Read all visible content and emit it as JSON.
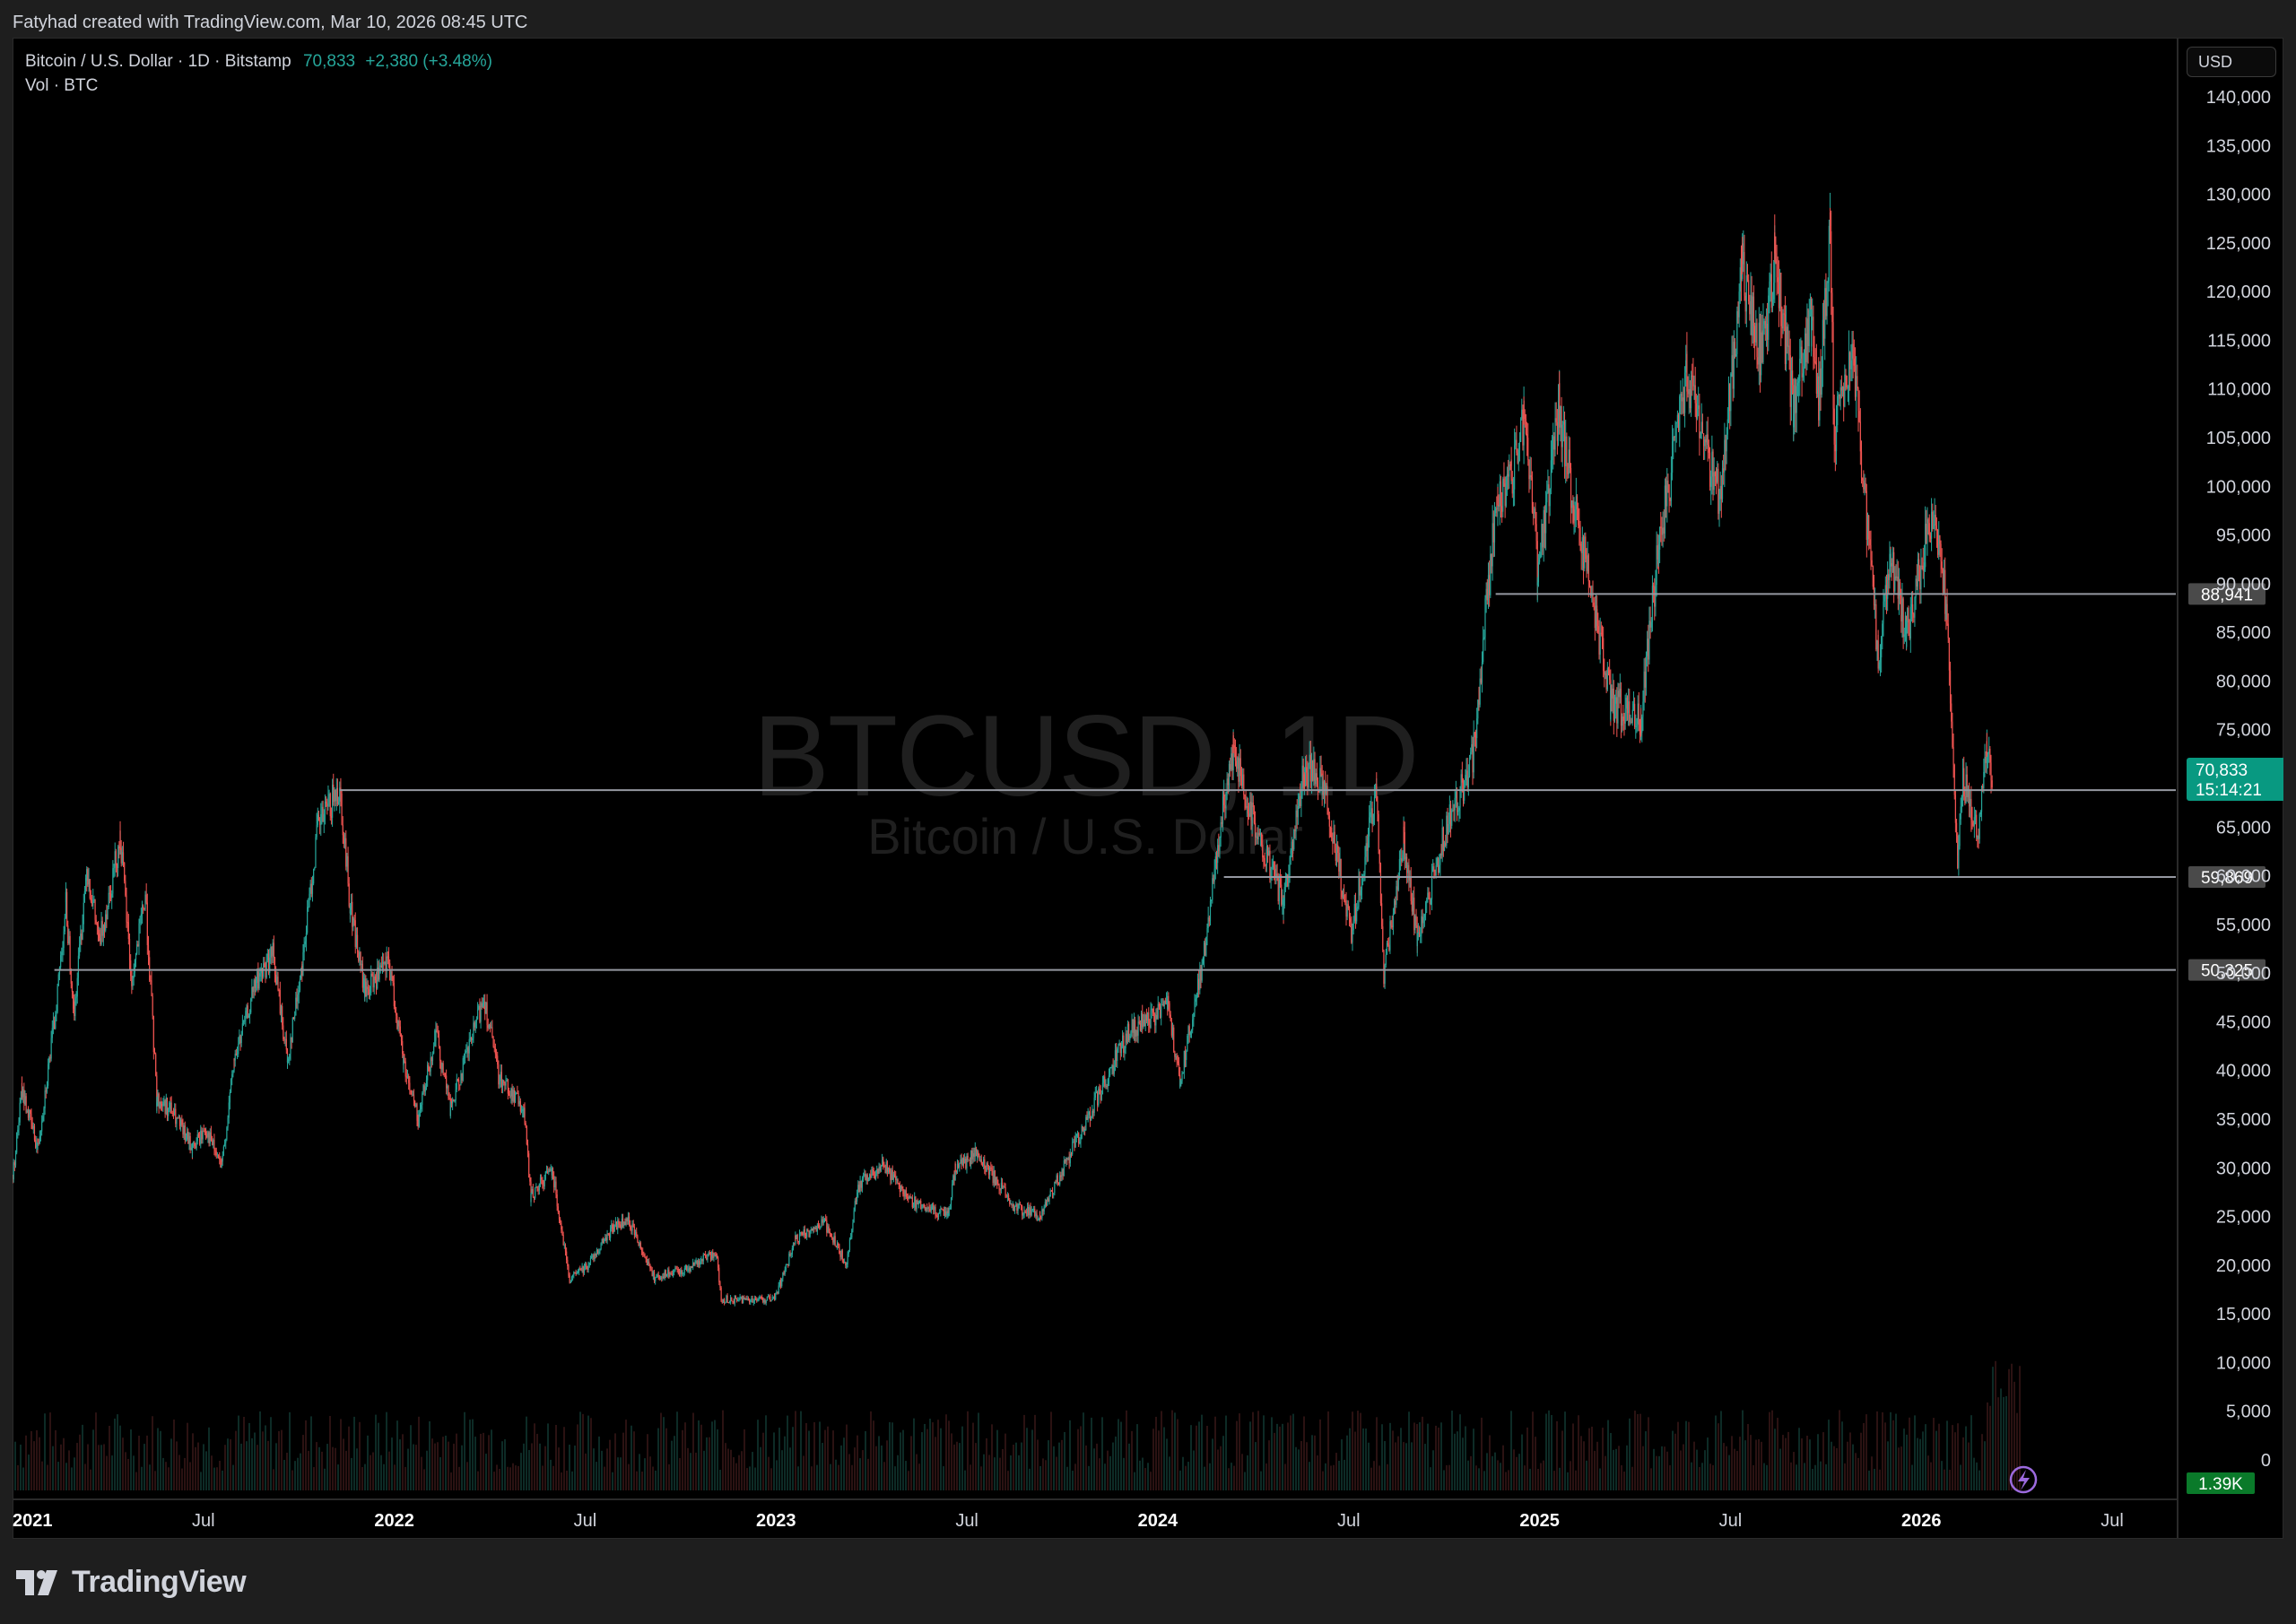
{
  "header": {
    "credit": "Fatyhad created with TradingView.com, Mar 10, 2026 08:45 UTC"
  },
  "legend": {
    "symbol_line": "Bitcoin / U.S. Dollar · 1D · Bitstamp",
    "price": "70,833",
    "change": "+2,380 (+3.48%)",
    "volume_line": "Vol · BTC"
  },
  "currency": "USD",
  "watermark": {
    "ticker": "BTCUSD, 1D",
    "name": "Bitcoin / U.S. Dollar"
  },
  "footer": {
    "brand": "TradingView"
  },
  "colors": {
    "up": "#26a69a",
    "down": "#ef5350",
    "line": "#787b86",
    "current_price_bg": "#089981",
    "volume_badge_bg": "#0a7a2a"
  },
  "chart_data": {
    "type": "candlestick",
    "title": "Bitcoin / U.S. Dollar · 1D · Bitstamp",
    "x_ticks": [
      {
        "label": "2021",
        "t": 2021.0,
        "bold": true
      },
      {
        "label": "Jul",
        "t": 2021.5,
        "bold": false
      },
      {
        "label": "2022",
        "t": 2022.0,
        "bold": true
      },
      {
        "label": "Jul",
        "t": 2022.5,
        "bold": false
      },
      {
        "label": "2023",
        "t": 2023.0,
        "bold": true
      },
      {
        "label": "Jul",
        "t": 2023.5,
        "bold": false
      },
      {
        "label": "2024",
        "t": 2024.0,
        "bold": true
      },
      {
        "label": "Jul",
        "t": 2024.5,
        "bold": false
      },
      {
        "label": "2025",
        "t": 2025.0,
        "bold": true
      },
      {
        "label": "Jul",
        "t": 2025.5,
        "bold": false
      },
      {
        "label": "2026",
        "t": 2026.0,
        "bold": true
      },
      {
        "label": "Jul",
        "t": 2026.5,
        "bold": false
      }
    ],
    "y_ticks": [
      {
        "label": "140,000",
        "v": 140000
      },
      {
        "label": "135,000",
        "v": 135000
      },
      {
        "label": "130,000",
        "v": 130000
      },
      {
        "label": "125,000",
        "v": 125000
      },
      {
        "label": "120,000",
        "v": 120000
      },
      {
        "label": "115,000",
        "v": 115000
      },
      {
        "label": "110,000",
        "v": 110000
      },
      {
        "label": "105,000",
        "v": 105000
      },
      {
        "label": "100,000",
        "v": 100000
      },
      {
        "label": "95,000",
        "v": 95000
      },
      {
        "label": "90,000",
        "v": 90000
      },
      {
        "label": "85,000",
        "v": 85000
      },
      {
        "label": "80,000",
        "v": 80000
      },
      {
        "label": "75,000",
        "v": 75000
      },
      {
        "label": "70,000",
        "v": 70000
      },
      {
        "label": "65,000",
        "v": 65000
      },
      {
        "label": "60,000",
        "v": 60000
      },
      {
        "label": "55,000",
        "v": 55000
      },
      {
        "label": "50,000",
        "v": 50000
      },
      {
        "label": "45,000",
        "v": 45000
      },
      {
        "label": "40,000",
        "v": 40000
      },
      {
        "label": "35,000",
        "v": 35000
      },
      {
        "label": "30,000",
        "v": 30000
      },
      {
        "label": "25,000",
        "v": 25000
      },
      {
        "label": "20,000",
        "v": 20000
      },
      {
        "label": "15,000",
        "v": 15000
      },
      {
        "label": "10,000",
        "v": 10000
      },
      {
        "label": "5,000",
        "v": 5000
      },
      {
        "label": "0",
        "v": 0
      }
    ],
    "ylim": [
      0,
      140000
    ],
    "xlim": [
      "2021-01-01",
      "2026-09-01"
    ],
    "price_path": [
      [
        "2021-01-01",
        29000
      ],
      [
        "2021-01-10",
        38000
      ],
      [
        "2021-01-25",
        32000
      ],
      [
        "2021-02-10",
        45000
      ],
      [
        "2021-02-21",
        57000
      ],
      [
        "2021-03-01",
        46000
      ],
      [
        "2021-03-13",
        61000
      ],
      [
        "2021-03-25",
        53000
      ],
      [
        "2021-04-14",
        64000
      ],
      [
        "2021-04-25",
        49000
      ],
      [
        "2021-05-08",
        58000
      ],
      [
        "2021-05-19",
        37000
      ],
      [
        "2021-06-01",
        36000
      ],
      [
        "2021-06-22",
        32000
      ],
      [
        "2021-07-05",
        34000
      ],
      [
        "2021-07-20",
        30000
      ],
      [
        "2021-08-01",
        41000
      ],
      [
        "2021-08-22",
        49000
      ],
      [
        "2021-09-07",
        52000
      ],
      [
        "2021-09-21",
        41000
      ],
      [
        "2021-10-05",
        51000
      ],
      [
        "2021-10-20",
        65000
      ],
      [
        "2021-11-10",
        69000
      ],
      [
        "2021-11-20",
        57000
      ],
      [
        "2021-12-04",
        48000
      ],
      [
        "2021-12-27",
        51000
      ],
      [
        "2022-01-10",
        41000
      ],
      [
        "2022-01-24",
        35000
      ],
      [
        "2022-02-10",
        44000
      ],
      [
        "2022-02-24",
        36000
      ],
      [
        "2022-03-28",
        47500
      ],
      [
        "2022-04-11",
        39500
      ],
      [
        "2022-05-05",
        36000
      ],
      [
        "2022-05-12",
        27000
      ],
      [
        "2022-06-01",
        30000
      ],
      [
        "2022-06-18",
        18500
      ],
      [
        "2022-07-05",
        20000
      ],
      [
        "2022-07-30",
        24000
      ],
      [
        "2022-08-14",
        24500
      ],
      [
        "2022-09-07",
        18800
      ],
      [
        "2022-10-01",
        19300
      ],
      [
        "2022-11-05",
        21300
      ],
      [
        "2022-11-10",
        16500
      ],
      [
        "2022-12-31",
        16500
      ],
      [
        "2023-01-20",
        22500
      ],
      [
        "2023-02-16",
        24500
      ],
      [
        "2023-03-10",
        20000
      ],
      [
        "2023-03-20",
        28000
      ],
      [
        "2023-04-14",
        30400
      ],
      [
        "2023-05-12",
        26500
      ],
      [
        "2023-06-15",
        25000
      ],
      [
        "2023-06-22",
        30000
      ],
      [
        "2023-07-13",
        31500
      ],
      [
        "2023-08-17",
        26000
      ],
      [
        "2023-09-11",
        25000
      ],
      [
        "2023-10-24",
        34500
      ],
      [
        "2023-12-05",
        44000
      ],
      [
        "2024-01-11",
        46500
      ],
      [
        "2024-01-23",
        39000
      ],
      [
        "2024-02-15",
        52000
      ],
      [
        "2024-03-05",
        68000
      ],
      [
        "2024-03-14",
        73000
      ],
      [
        "2024-04-01",
        66000
      ],
      [
        "2024-05-01",
        57000
      ],
      [
        "2024-05-21",
        71000
      ],
      [
        "2024-06-07",
        70000
      ],
      [
        "2024-07-05",
        54000
      ],
      [
        "2024-07-29",
        69000
      ],
      [
        "2024-08-05",
        50000
      ],
      [
        "2024-08-24",
        64000
      ],
      [
        "2024-09-06",
        53000
      ],
      [
        "2024-10-01",
        64000
      ],
      [
        "2024-10-29",
        72000
      ],
      [
        "2024-11-12",
        89000
      ],
      [
        "2024-11-22",
        99000
      ],
      [
        "2024-12-05",
        101000
      ],
      [
        "2024-12-17",
        107000
      ],
      [
        "2024-12-30",
        92000
      ],
      [
        "2025-01-20",
        108000
      ],
      [
        "2025-02-03",
        98000
      ],
      [
        "2025-02-25",
        86000
      ],
      [
        "2025-03-10",
        78000
      ],
      [
        "2025-04-08",
        76000
      ],
      [
        "2025-04-25",
        94000
      ],
      [
        "2025-05-22",
        111000
      ],
      [
        "2025-06-22",
        99000
      ],
      [
        "2025-07-14",
        122000
      ],
      [
        "2025-08-02",
        113000
      ],
      [
        "2025-08-14",
        124000
      ],
      [
        "2025-09-01",
        108000
      ],
      [
        "2025-09-18",
        117000
      ],
      [
        "2025-09-25",
        109000
      ],
      [
        "2025-10-06",
        126000
      ],
      [
        "2025-10-10",
        105000
      ],
      [
        "2025-10-27",
        115000
      ],
      [
        "2025-11-21",
        82000
      ],
      [
        "2025-12-03",
        93000
      ],
      [
        "2025-12-18",
        85000
      ],
      [
        "2026-01-05",
        94000
      ],
      [
        "2026-01-14",
        97000
      ],
      [
        "2026-01-25",
        88000
      ],
      [
        "2026-02-05",
        62000
      ],
      [
        "2026-02-10",
        70000
      ],
      [
        "2026-02-24",
        64000
      ],
      [
        "2026-03-05",
        73000
      ],
      [
        "2026-03-10",
        70833
      ]
    ],
    "horizontal_levels": [
      {
        "value": 88941,
        "label": "88,941",
        "from": "2024-11-20"
      },
      {
        "value": 68792,
        "label": "68,792",
        "from": "2021-11-10"
      },
      {
        "value": 59869,
        "label": "59,869",
        "from": "2024-03-05"
      },
      {
        "value": 50325,
        "label": "50,325",
        "from": "2021-02-10"
      }
    ],
    "current_price": {
      "label": "70,833",
      "countdown": "15:14:21",
      "value": 70833
    },
    "volume": {
      "label": "1.39K",
      "series_name": "Vol · BTC"
    }
  }
}
